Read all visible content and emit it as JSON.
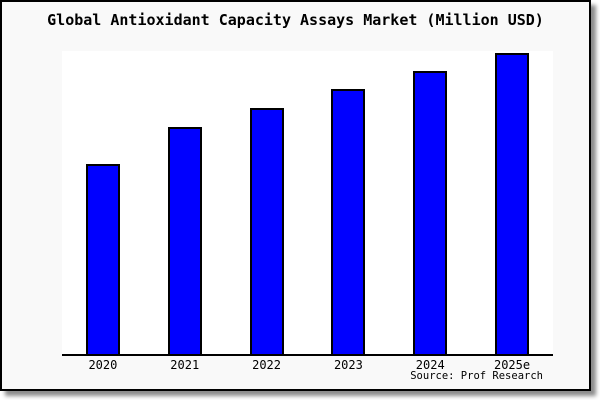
{
  "frame": {
    "background": "#f9f9f9",
    "border_color": "#000000",
    "plot_background": "#ffffff"
  },
  "chart_data": {
    "type": "bar",
    "title": "Global Antioxidant Capacity Assays Market (Million USD)",
    "categories": [
      "2020",
      "2021",
      "2022",
      "2023",
      "2024",
      "2025e"
    ],
    "values_pct_of_max_bar": [
      63.1,
      75.4,
      81.7,
      88.0,
      94.0,
      100
    ],
    "xlabel": "",
    "ylabel": "",
    "y_axis": "unlabeled (no ticks, no gridlines)",
    "legend": "none",
    "grid": "off",
    "bar_color": "#0000ff",
    "bar_border_color": "#000000",
    "source_label": "Source: Prof Research"
  }
}
